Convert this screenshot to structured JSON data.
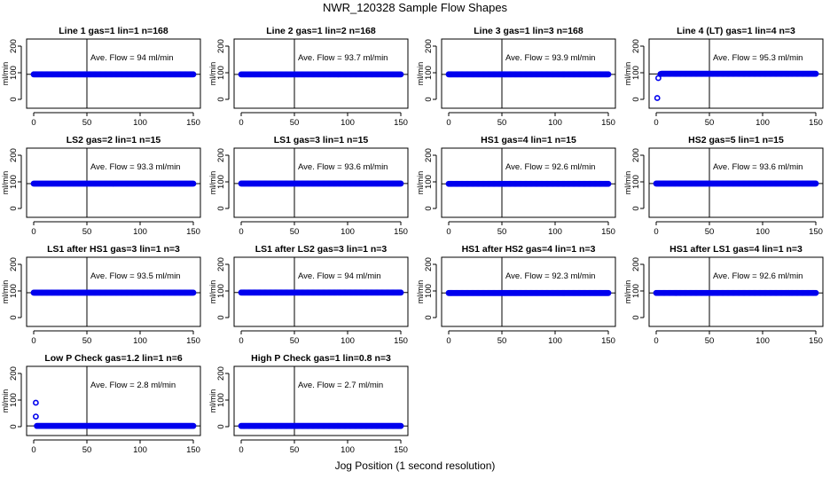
{
  "page": {
    "title": "NWR_120328  Sample Flow Shapes",
    "xlabel": "Jog Position (1 second resolution)"
  },
  "style": {
    "point_color": "#0000ee",
    "line_color": "#000000"
  },
  "chart_data": [
    {
      "type": "scatter",
      "title": "Line 1 gas=1 lin=1 n=168",
      "ylabel": "ml/min",
      "xlim": [
        0,
        150
      ],
      "ylim": [
        0,
        200
      ],
      "xticks": [
        0,
        50,
        100,
        150
      ],
      "yticks": [
        0,
        100,
        200
      ],
      "vline": 50,
      "hline": 94,
      "annotation": "Ave. Flow =  94   ml/min",
      "baseline": {
        "x_start": 0,
        "x_end": 150,
        "y": 94
      },
      "extra_points": []
    },
    {
      "type": "scatter",
      "title": "Line 2 gas=1 lin=2 n=168",
      "ylabel": "ml/min",
      "xlim": [
        0,
        150
      ],
      "ylim": [
        0,
        200
      ],
      "xticks": [
        0,
        50,
        100,
        150
      ],
      "yticks": [
        0,
        100,
        200
      ],
      "vline": 50,
      "hline": 93.7,
      "annotation": "Ave. Flow =  93.7   ml/min",
      "baseline": {
        "x_start": 0,
        "x_end": 150,
        "y": 93.7
      },
      "extra_points": []
    },
    {
      "type": "scatter",
      "title": "Line 3 gas=1 lin=3 n=168",
      "ylabel": "ml/min",
      "xlim": [
        0,
        150
      ],
      "ylim": [
        0,
        200
      ],
      "xticks": [
        0,
        50,
        100,
        150
      ],
      "yticks": [
        0,
        100,
        200
      ],
      "vline": 50,
      "hline": 93.9,
      "annotation": "Ave. Flow =  93.9   ml/min",
      "baseline": {
        "x_start": 0,
        "x_end": 150,
        "y": 93.9
      },
      "extra_points": []
    },
    {
      "type": "scatter",
      "title": "Line 4 (LT) gas=1 lin=4 n=3",
      "ylabel": "ml/min",
      "xlim": [
        0,
        150
      ],
      "ylim": [
        0,
        200
      ],
      "xticks": [
        0,
        50,
        100,
        150
      ],
      "yticks": [
        0,
        100,
        200
      ],
      "vline": 50,
      "hline": 95.3,
      "annotation": "Ave. Flow =  95.3   ml/min",
      "baseline": {
        "x_start": 5,
        "x_end": 150,
        "y": 96
      },
      "extra_points": [
        {
          "x": 1,
          "y": 5
        },
        {
          "x": 2,
          "y": 80
        },
        {
          "x": 4,
          "y": 95
        }
      ]
    },
    {
      "type": "scatter",
      "title": "LS2 gas=2 lin=1 n=15",
      "ylabel": "ml/min",
      "xlim": [
        0,
        150
      ],
      "ylim": [
        0,
        200
      ],
      "xticks": [
        0,
        50,
        100,
        150
      ],
      "yticks": [
        0,
        100,
        200
      ],
      "vline": 50,
      "hline": 93.3,
      "annotation": "Ave. Flow =  93.3   ml/min",
      "baseline": {
        "x_start": 0,
        "x_end": 150,
        "y": 93.3
      },
      "extra_points": []
    },
    {
      "type": "scatter",
      "title": "LS1 gas=3 lin=1 n=15",
      "ylabel": "ml/min",
      "xlim": [
        0,
        150
      ],
      "ylim": [
        0,
        200
      ],
      "xticks": [
        0,
        50,
        100,
        150
      ],
      "yticks": [
        0,
        100,
        200
      ],
      "vline": 50,
      "hline": 93.6,
      "annotation": "Ave. Flow =  93.6   ml/min",
      "baseline": {
        "x_start": 0,
        "x_end": 150,
        "y": 93.6
      },
      "extra_points": []
    },
    {
      "type": "scatter",
      "title": "HS1 gas=4 lin=1 n=15",
      "ylabel": "ml/min",
      "xlim": [
        0,
        150
      ],
      "ylim": [
        0,
        200
      ],
      "xticks": [
        0,
        50,
        100,
        150
      ],
      "yticks": [
        0,
        100,
        200
      ],
      "vline": 50,
      "hline": 92.6,
      "annotation": "Ave. Flow =  92.6   ml/min",
      "baseline": {
        "x_start": 0,
        "x_end": 150,
        "y": 92.6
      },
      "extra_points": []
    },
    {
      "type": "scatter",
      "title": "HS2 gas=5 lin=1 n=15",
      "ylabel": "ml/min",
      "xlim": [
        0,
        150
      ],
      "ylim": [
        0,
        200
      ],
      "xticks": [
        0,
        50,
        100,
        150
      ],
      "yticks": [
        0,
        100,
        200
      ],
      "vline": 50,
      "hline": 93.6,
      "annotation": "Ave. Flow =  93.6   ml/min",
      "baseline": {
        "x_start": 0,
        "x_end": 150,
        "y": 93.6
      },
      "extra_points": []
    },
    {
      "type": "scatter",
      "title": "LS1 after HS1 gas=3 lin=1 n=3",
      "ylabel": "ml/min",
      "xlim": [
        0,
        150
      ],
      "ylim": [
        0,
        200
      ],
      "xticks": [
        0,
        50,
        100,
        150
      ],
      "yticks": [
        0,
        100,
        200
      ],
      "vline": 50,
      "hline": 93.5,
      "annotation": "Ave. Flow =  93.5   ml/min",
      "baseline": {
        "x_start": 0,
        "x_end": 150,
        "y": 93.5
      },
      "extra_points": []
    },
    {
      "type": "scatter",
      "title": "LS1 after LS2 gas=3 lin=1 n=3",
      "ylabel": "ml/min",
      "xlim": [
        0,
        150
      ],
      "ylim": [
        0,
        200
      ],
      "xticks": [
        0,
        50,
        100,
        150
      ],
      "yticks": [
        0,
        100,
        200
      ],
      "vline": 50,
      "hline": 94,
      "annotation": "Ave. Flow =  94   ml/min",
      "baseline": {
        "x_start": 0,
        "x_end": 150,
        "y": 94
      },
      "extra_points": []
    },
    {
      "type": "scatter",
      "title": "HS1 after HS2 gas=4 lin=1 n=3",
      "ylabel": "ml/min",
      "xlim": [
        0,
        150
      ],
      "ylim": [
        0,
        200
      ],
      "xticks": [
        0,
        50,
        100,
        150
      ],
      "yticks": [
        0,
        100,
        200
      ],
      "vline": 50,
      "hline": 92.3,
      "annotation": "Ave. Flow =  92.3   ml/min",
      "baseline": {
        "x_start": 0,
        "x_end": 150,
        "y": 92.3
      },
      "extra_points": []
    },
    {
      "type": "scatter",
      "title": "HS1 after LS1 gas=4 lin=1 n=3",
      "ylabel": "ml/min",
      "xlim": [
        0,
        150
      ],
      "ylim": [
        0,
        200
      ],
      "xticks": [
        0,
        50,
        100,
        150
      ],
      "yticks": [
        0,
        100,
        200
      ],
      "vline": 50,
      "hline": 92.6,
      "annotation": "Ave. Flow =  92.6   ml/min",
      "baseline": {
        "x_start": 0,
        "x_end": 150,
        "y": 92.6
      },
      "extra_points": []
    },
    {
      "type": "scatter",
      "title": "Low P Check gas=1.2 lin=1 n=6",
      "ylabel": "ml/min",
      "xlim": [
        0,
        150
      ],
      "ylim": [
        0,
        200
      ],
      "xticks": [
        0,
        50,
        100,
        150
      ],
      "yticks": [
        0,
        100,
        200
      ],
      "vline": 50,
      "hline": 2.8,
      "annotation": "Ave. Flow =  2.8   ml/min",
      "baseline": {
        "x_start": 3,
        "x_end": 150,
        "y": 2.8
      },
      "extra_points": [
        {
          "x": 2,
          "y": 90
        },
        {
          "x": 2,
          "y": 38
        }
      ]
    },
    {
      "type": "scatter",
      "title": "High P Check gas=1 lin=0.8 n=3",
      "ylabel": "ml/min",
      "xlim": [
        0,
        150
      ],
      "ylim": [
        0,
        200
      ],
      "xticks": [
        0,
        50,
        100,
        150
      ],
      "yticks": [
        0,
        100,
        200
      ],
      "vline": 50,
      "hline": 2.7,
      "annotation": "Ave. Flow =  2.7   ml/min",
      "baseline": {
        "x_start": 0,
        "x_end": 150,
        "y": 2.7
      },
      "extra_points": []
    }
  ]
}
